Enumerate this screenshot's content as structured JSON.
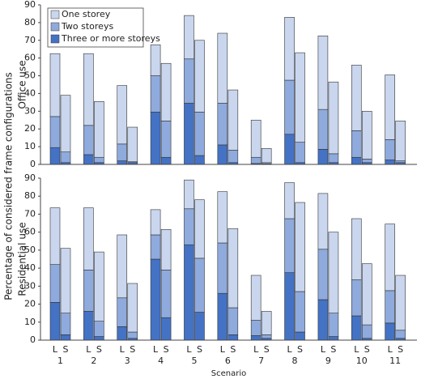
{
  "page": {
    "ylabel": "Percentage of considered frame configurations"
  },
  "chart_data": [
    {
      "type": "stacked_bar",
      "ylabel": "Office use",
      "ylim": [
        0,
        90
      ],
      "yticks": [
        0,
        10,
        20,
        30,
        40,
        50,
        60,
        70,
        80,
        90
      ],
      "legend": "upper left",
      "series": [
        {
          "name": "Three or more storeys",
          "color": "#4472c4",
          "values": [
            9.5,
            1,
            5.5,
            1,
            2,
            1,
            29.5,
            4,
            34.5,
            5,
            11,
            1,
            0.5,
            0.3,
            17,
            1,
            8.5,
            1,
            4,
            1,
            2.5,
            1
          ]
        },
        {
          "name": "Two storeys",
          "color": "#8faadc",
          "values": [
            17.5,
            6,
            16.5,
            3,
            9.5,
            0.5,
            20.5,
            20.5,
            25,
            24.5,
            23.5,
            7,
            3.5,
            0.7,
            30.5,
            11.5,
            22.5,
            5,
            15,
            2,
            11.5,
            1
          ]
        },
        {
          "name": "One storey",
          "color": "#c9d6ee",
          "values": [
            35.5,
            32,
            40.5,
            31.5,
            33,
            19.5,
            17.5,
            32.5,
            24.5,
            40.5,
            39.5,
            34,
            21,
            8,
            35.5,
            50.5,
            41.5,
            40.5,
            37,
            27,
            36.5,
            22.5
          ]
        }
      ]
    },
    {
      "type": "stacked_bar",
      "ylabel": "Residential use",
      "xlabel": "Scenario",
      "ylim": [
        0,
        90
      ],
      "yticks": [
        0,
        10,
        20,
        30,
        40,
        50,
        60,
        70,
        80,
        90
      ],
      "categories": [
        "L",
        "S",
        "L",
        "S",
        "L",
        "S",
        "L",
        "S",
        "L",
        "S",
        "L",
        "S",
        "L",
        "S",
        "L",
        "S",
        "L",
        "S",
        "L",
        "S",
        "L",
        "S"
      ],
      "groups": [
        "1",
        "2",
        "3",
        "4",
        "5",
        "6",
        "7",
        "8",
        "9",
        "10",
        "11"
      ],
      "series": [
        {
          "color": "#4472c4",
          "values": [
            21,
            3,
            16,
            2,
            7.5,
            1,
            45,
            12.5,
            53,
            15.5,
            26,
            3,
            2.5,
            1,
            37.5,
            4.5,
            22.5,
            2,
            13.5,
            1,
            9.5,
            1
          ]
        },
        {
          "color": "#8faadc",
          "values": [
            21,
            12,
            23,
            8.5,
            16,
            3.5,
            13.5,
            26.5,
            20,
            30,
            28,
            15,
            8.5,
            2,
            30,
            22.5,
            28,
            13,
            20,
            7.5,
            18,
            4.5
          ]
        },
        {
          "color": "#c9d6ee",
          "values": [
            31.5,
            36,
            34.5,
            38.5,
            35,
            27,
            14,
            22.5,
            16,
            32.5,
            28.5,
            44,
            25,
            13,
            20,
            49.5,
            31,
            45,
            34,
            34,
            37,
            30.5
          ]
        }
      ]
    }
  ]
}
